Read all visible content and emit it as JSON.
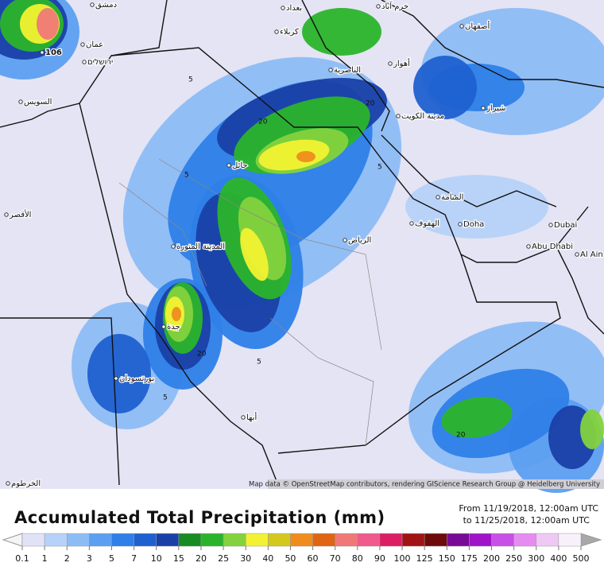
{
  "map": {
    "labels": [
      "دمشق",
      "بغداد",
      "خرم آباد",
      "کربلاء",
      "أصفهان",
      "عمان",
      "ירושלים",
      "106",
      "الناصرية",
      "أهواز",
      "السويس",
      "مدينة الكويت",
      "شيراز",
      "حائل",
      "المنامة",
      "الهفوف",
      "Doha",
      "Dubai",
      "الرياض",
      "Abu Dhabi",
      "Al Ain",
      "المدينة المنورة",
      "جدة",
      "بورتسودان",
      "أبها",
      "الأقصر",
      "الخرطوم"
    ],
    "contour_labels": [
      "5",
      "20",
      "20",
      "5",
      "5",
      "20",
      "5",
      "5",
      "20"
    ],
    "attribution": "Map data © OpenStreetMap contributors, rendering GIScience Research Group @ Heidelberg University"
  },
  "legend": {
    "title": "Accumulated Total Precipitation (mm)",
    "date_from": "From 11/19/2018, 12:00am UTC",
    "date_to": "to 11/25/2018, 12:00am UTC",
    "levels": [
      0.1,
      1,
      2,
      3,
      5,
      7,
      10,
      15,
      20,
      25,
      30,
      40,
      50,
      60,
      70,
      80,
      90,
      100,
      125,
      150,
      175,
      200,
      250,
      300,
      400,
      500
    ],
    "colors": [
      "#e2e2f6",
      "#b6d2f8",
      "#8dbcf5",
      "#5c9ff0",
      "#2e7fe8",
      "#1f60d0",
      "#1a40a8",
      "#168c22",
      "#2bb42b",
      "#84d23e",
      "#f2f232",
      "#d4c81f",
      "#f08c1e",
      "#e06414",
      "#f07878",
      "#f05a8c",
      "#dc1e64",
      "#a01414",
      "#6e0a0a",
      "#780a96",
      "#a014c8",
      "#c850e6",
      "#e68cf0",
      "#f0c8f5",
      "#f8f0fa"
    ]
  }
}
